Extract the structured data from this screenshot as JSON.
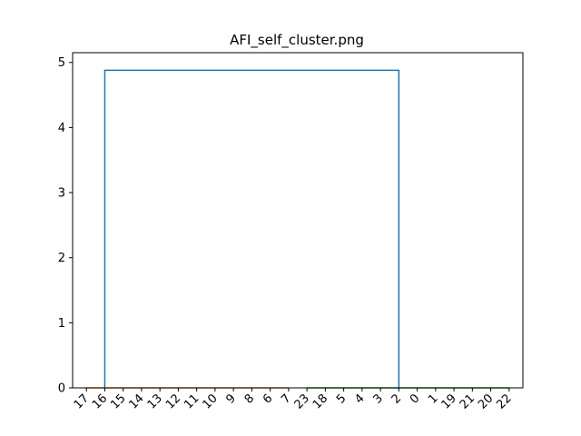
{
  "chart_data": {
    "type": "dendrogram",
    "title": "AFI_self_cluster.png",
    "xlabel": "",
    "ylabel": "",
    "leaves": [
      "17",
      "16",
      "15",
      "14",
      "13",
      "12",
      "11",
      "10",
      "9",
      "8",
      "6",
      "7",
      "23",
      "18",
      "5",
      "4",
      "3",
      "2",
      "0",
      "1",
      "19",
      "21",
      "20",
      "22"
    ],
    "yticks": [
      0,
      1,
      2,
      3,
      4,
      5
    ],
    "ylim": [
      0,
      5.15
    ],
    "grid": false,
    "clusters": [
      {
        "color": "#ff7f0e",
        "leaf_range": [
          "17",
          "7"
        ],
        "height": 0
      },
      {
        "color": "#2ca02c",
        "leaf_range": [
          "23",
          "22"
        ],
        "height": 0
      }
    ],
    "links": [
      {
        "color": "#1f77b4",
        "left_leaf": "16",
        "right_leaf": "2",
        "height": 4.88
      }
    ]
  }
}
